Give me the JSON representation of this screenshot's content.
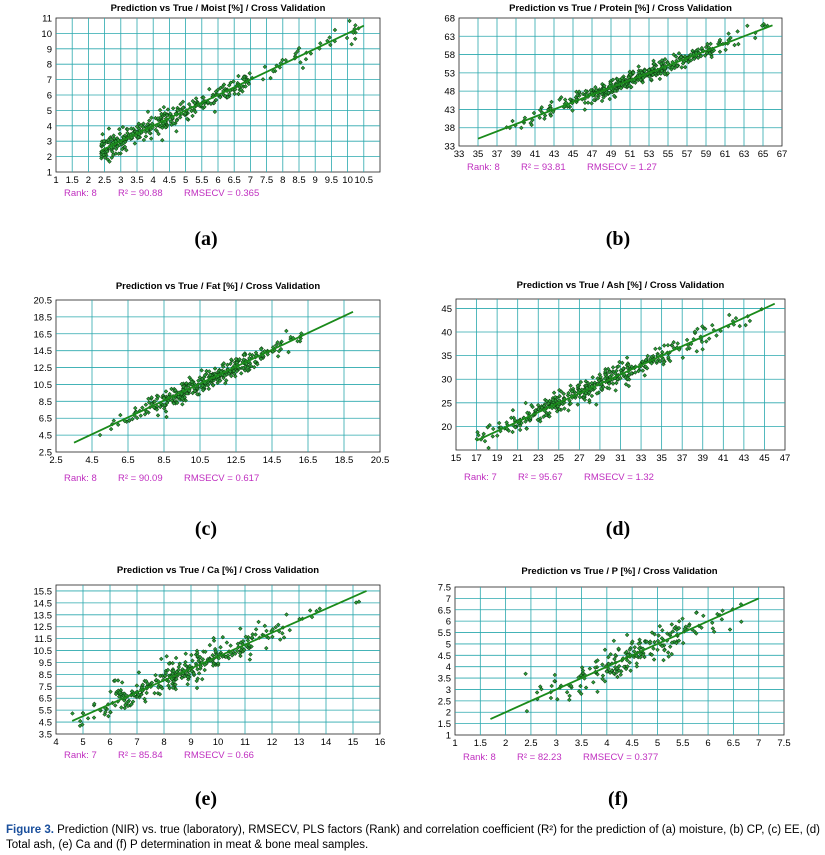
{
  "panels": [
    {
      "letter": "(a)",
      "title": "Prediction vs True  /  Moist [%]  /  Cross Validation",
      "stats": {
        "rank": "Rank: 8",
        "r2": "R² = 90.88",
        "rmsecv": "RMSECV = 0.365"
      },
      "chart_data": {
        "type": "scatter",
        "title": "Prediction vs True  /  Moist [%]  /  Cross Validation",
        "xlim": [
          1,
          11
        ],
        "ylim": [
          1,
          11
        ],
        "xticks": [
          "1",
          "1.5",
          "2",
          "2.5",
          "3",
          "3.5",
          "4",
          "4.5",
          "5",
          "5.5",
          "6",
          "6.5",
          "7",
          "7.5",
          "8",
          "8.5",
          "9",
          "9.5",
          "10",
          "10.5"
        ],
        "yticks": [
          "1",
          "2",
          "3",
          "4",
          "5",
          "6",
          "7",
          "8",
          "9",
          "10",
          "11"
        ],
        "xtick_values": [
          1,
          1.5,
          2,
          2.5,
          3,
          3.5,
          4,
          4.5,
          5,
          5.5,
          6,
          6.5,
          7,
          7.5,
          8,
          8.5,
          9,
          9.5,
          10,
          10.5
        ],
        "ytick_values": [
          1,
          2,
          3,
          4,
          5,
          6,
          7,
          8,
          9,
          10,
          11
        ],
        "regression_line": {
          "x1": 2.4,
          "y1": 2.4,
          "x2": 10.5,
          "y2": 10.5
        },
        "points_range": [
          2.4,
          10.5
        ],
        "n_points": 380,
        "noise_sd": 0.36,
        "sparse_above": 7.0,
        "grid": true
      }
    },
    {
      "letter": "(b)",
      "title": "Prediction vs True  /  Protein [%]  /  Cross Validation",
      "stats": {
        "rank": "Rank: 8",
        "r2": "R² = 93.81",
        "rmsecv": "RMSECV = 1.27"
      },
      "chart_data": {
        "type": "scatter",
        "title": "Prediction vs True  /  Protein [%]  /  Cross Validation",
        "xlim": [
          33,
          67
        ],
        "ylim": [
          33,
          68
        ],
        "xticks": [
          "33",
          "35",
          "37",
          "39",
          "41",
          "43",
          "45",
          "47",
          "49",
          "51",
          "53",
          "55",
          "57",
          "59",
          "61",
          "63",
          "65",
          "67"
        ],
        "yticks": [
          "33",
          "38",
          "43",
          "48",
          "53",
          "58",
          "63",
          "68"
        ],
        "xtick_values": [
          33,
          35,
          37,
          39,
          41,
          43,
          45,
          47,
          49,
          51,
          53,
          55,
          57,
          59,
          61,
          63,
          65,
          67
        ],
        "ytick_values": [
          33,
          38,
          43,
          48,
          53,
          58,
          63,
          68
        ],
        "regression_line": {
          "x1": 35,
          "y1": 35,
          "x2": 66,
          "y2": 66
        },
        "points_range": [
          35,
          66
        ],
        "n_points": 420,
        "noise_sd": 1.2,
        "center": 52,
        "spread": 5.5,
        "grid": true
      }
    },
    {
      "letter": "(c)",
      "title": "Prediction vs True  /  Fat [%]  /  Cross Validation",
      "stats": {
        "rank": "Rank: 8",
        "r2": "R² = 90.09",
        "rmsecv": "RMSECV = 0.617"
      },
      "chart_data": {
        "type": "scatter",
        "title": "Prediction vs True  /  Fat [%]  /  Cross Validation",
        "xlim": [
          2.5,
          20.5
        ],
        "ylim": [
          2.5,
          20.5
        ],
        "xticks": [
          "2.5",
          "4.5",
          "6.5",
          "8.5",
          "10.5",
          "12.5",
          "14.5",
          "16.5",
          "18.5",
          "20.5"
        ],
        "yticks": [
          "2.5",
          "4.5",
          "6.5",
          "8.5",
          "10.5",
          "12.5",
          "14.5",
          "16.5",
          "18.5",
          "20.5"
        ],
        "xtick_values": [
          2.5,
          4.5,
          6.5,
          8.5,
          10.5,
          12.5,
          14.5,
          16.5,
          18.5,
          20.5
        ],
        "ytick_values": [
          2.5,
          4.5,
          6.5,
          8.5,
          10.5,
          12.5,
          14.5,
          16.5,
          18.5,
          20.5
        ],
        "regression_line": {
          "x1": 3.5,
          "y1": 3.6,
          "x2": 19,
          "y2": 19.1
        },
        "points_range": [
          3.5,
          19
        ],
        "n_points": 360,
        "noise_sd": 0.6,
        "center": 11,
        "spread": 2.3,
        "grid": true
      }
    },
    {
      "letter": "(d)",
      "title": "Prediction vs True  /  Ash [%]  /  Cross Validation",
      "stats": {
        "rank": "Rank: 7",
        "r2": "R² = 95.67",
        "rmsecv": "RMSECV = 1.32"
      },
      "chart_data": {
        "type": "scatter",
        "title": "Prediction vs True  /  Ash [%]  /  Cross Validation",
        "xlim": [
          15,
          47
        ],
        "ylim": [
          15,
          47
        ],
        "xticks": [
          "15",
          "17",
          "19",
          "21",
          "23",
          "25",
          "27",
          "29",
          "31",
          "33",
          "35",
          "37",
          "39",
          "41",
          "43",
          "45",
          "47"
        ],
        "yticks": [
          "20",
          "25",
          "30",
          "35",
          "40",
          "45"
        ],
        "xtick_values": [
          15,
          17,
          19,
          21,
          23,
          25,
          27,
          29,
          31,
          33,
          35,
          37,
          39,
          41,
          43,
          45,
          47
        ],
        "ytick_values": [
          20,
          25,
          30,
          35,
          40,
          45
        ],
        "regression_line": {
          "x1": 17,
          "y1": 17,
          "x2": 46,
          "y2": 46
        },
        "points_range": [
          17,
          46
        ],
        "n_points": 400,
        "noise_sd": 1.2,
        "center": 28,
        "spread": 6,
        "grid": true
      }
    },
    {
      "letter": "(e)",
      "title": "Prediction vs True  /  Ca [%]  /  Cross Validation",
      "stats": {
        "rank": "Rank: 7",
        "r2": "R² = 85.84",
        "rmsecv": "RMSECV = 0.66"
      },
      "chart_data": {
        "type": "scatter",
        "title": "Prediction vs True  /  Ca [%]  /  Cross Validation",
        "xlim": [
          4,
          16
        ],
        "ylim": [
          3.5,
          16
        ],
        "xticks": [
          "4",
          "5",
          "6",
          "7",
          "8",
          "9",
          "10",
          "11",
          "12",
          "13",
          "14",
          "15",
          "16"
        ],
        "yticks": [
          "3.5",
          "4.5",
          "5.5",
          "6.5",
          "7.5",
          "8.5",
          "9.5",
          "10.5",
          "11.5",
          "12.5",
          "13.5",
          "14.5",
          "15.5"
        ],
        "xtick_values": [
          4,
          5,
          6,
          7,
          8,
          9,
          10,
          11,
          12,
          13,
          14,
          15,
          16
        ],
        "ytick_values": [
          3.5,
          4.5,
          5.5,
          6.5,
          7.5,
          8.5,
          9.5,
          10.5,
          11.5,
          12.5,
          13.5,
          14.5,
          15.5
        ],
        "regression_line": {
          "x1": 4.6,
          "y1": 4.6,
          "x2": 15.5,
          "y2": 15.5
        },
        "points_range": [
          4.6,
          15.5
        ],
        "n_points": 320,
        "noise_sd": 0.65,
        "center": 8.8,
        "spread": 2,
        "grid": true
      }
    },
    {
      "letter": "(f)",
      "title": "Prediction vs True  /  P [%]  /  Cross Validation",
      "stats": {
        "rank": "Rank: 8",
        "r2": "R² = 82.23",
        "rmsecv": "RMSECV = 0.377"
      },
      "chart_data": {
        "type": "scatter",
        "title": "Prediction vs True  /  P [%]  /  Cross Validation",
        "xlim": [
          1,
          7.5
        ],
        "ylim": [
          1,
          7.5
        ],
        "xticks": [
          "1",
          "1.5",
          "2",
          "2.5",
          "3",
          "3.5",
          "4",
          "4.5",
          "5",
          "5.5",
          "6",
          "6.5",
          "7",
          "7.5"
        ],
        "yticks": [
          "1",
          "1.5",
          "2",
          "2.5",
          "3",
          "3.5",
          "4",
          "4.5",
          "5",
          "5.5",
          "6",
          "6.5",
          "7",
          "7.5"
        ],
        "xtick_values": [
          1,
          1.5,
          2,
          2.5,
          3,
          3.5,
          4,
          4.5,
          5,
          5.5,
          6,
          6.5,
          7,
          7.5
        ],
        "ytick_values": [
          1,
          1.5,
          2,
          2.5,
          3,
          3.5,
          4,
          4.5,
          5,
          5.5,
          6,
          6.5,
          7,
          7.5
        ],
        "regression_line": {
          "x1": 1.7,
          "y1": 1.7,
          "x2": 7,
          "y2": 7
        },
        "points_range": [
          1.7,
          7
        ],
        "n_points": 200,
        "noise_sd": 0.36,
        "center": 4.4,
        "spread": 0.9,
        "grid": true
      }
    }
  ],
  "caption": {
    "label": "Figure 3.",
    "text": " Prediction (NIR) vs. true (laboratory), RMSECV, PLS factors (Rank) and correlation coefficient (R²) for the prediction of (a) moisture, (b) CP, (c) EE, (d) Total ash, (e) Ca and (f) P determination in meat & bone meal samples."
  }
}
